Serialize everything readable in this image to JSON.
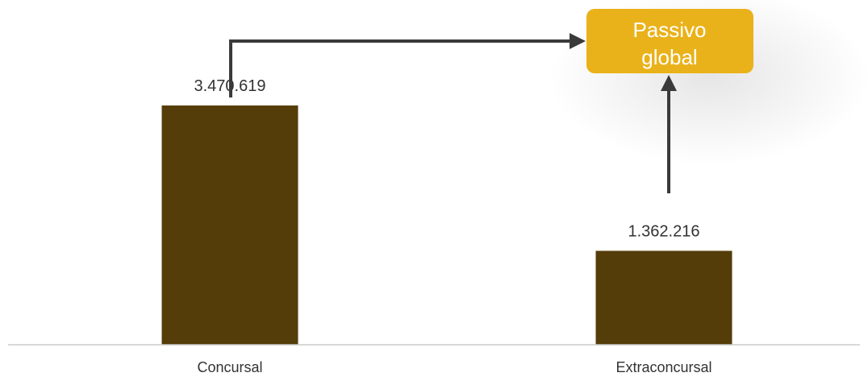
{
  "chart_data": {
    "type": "bar",
    "categories": [
      "Concursal",
      "Extraconcursal"
    ],
    "values": [
      3470619,
      1362216
    ],
    "value_labels": [
      "3.470.619",
      "1.362.216"
    ],
    "ylim": [
      0,
      5000000
    ],
    "grid": false,
    "legend": "none",
    "annotation": {
      "lines": [
        "Passivo",
        "global"
      ]
    },
    "colors": {
      "bar": "#553d0a",
      "annotation_fill": "#eab21a",
      "annotation_text": "#ffffff",
      "arrow": "#3a3a3a",
      "axis": "#cccccc",
      "text": "#333333"
    }
  }
}
